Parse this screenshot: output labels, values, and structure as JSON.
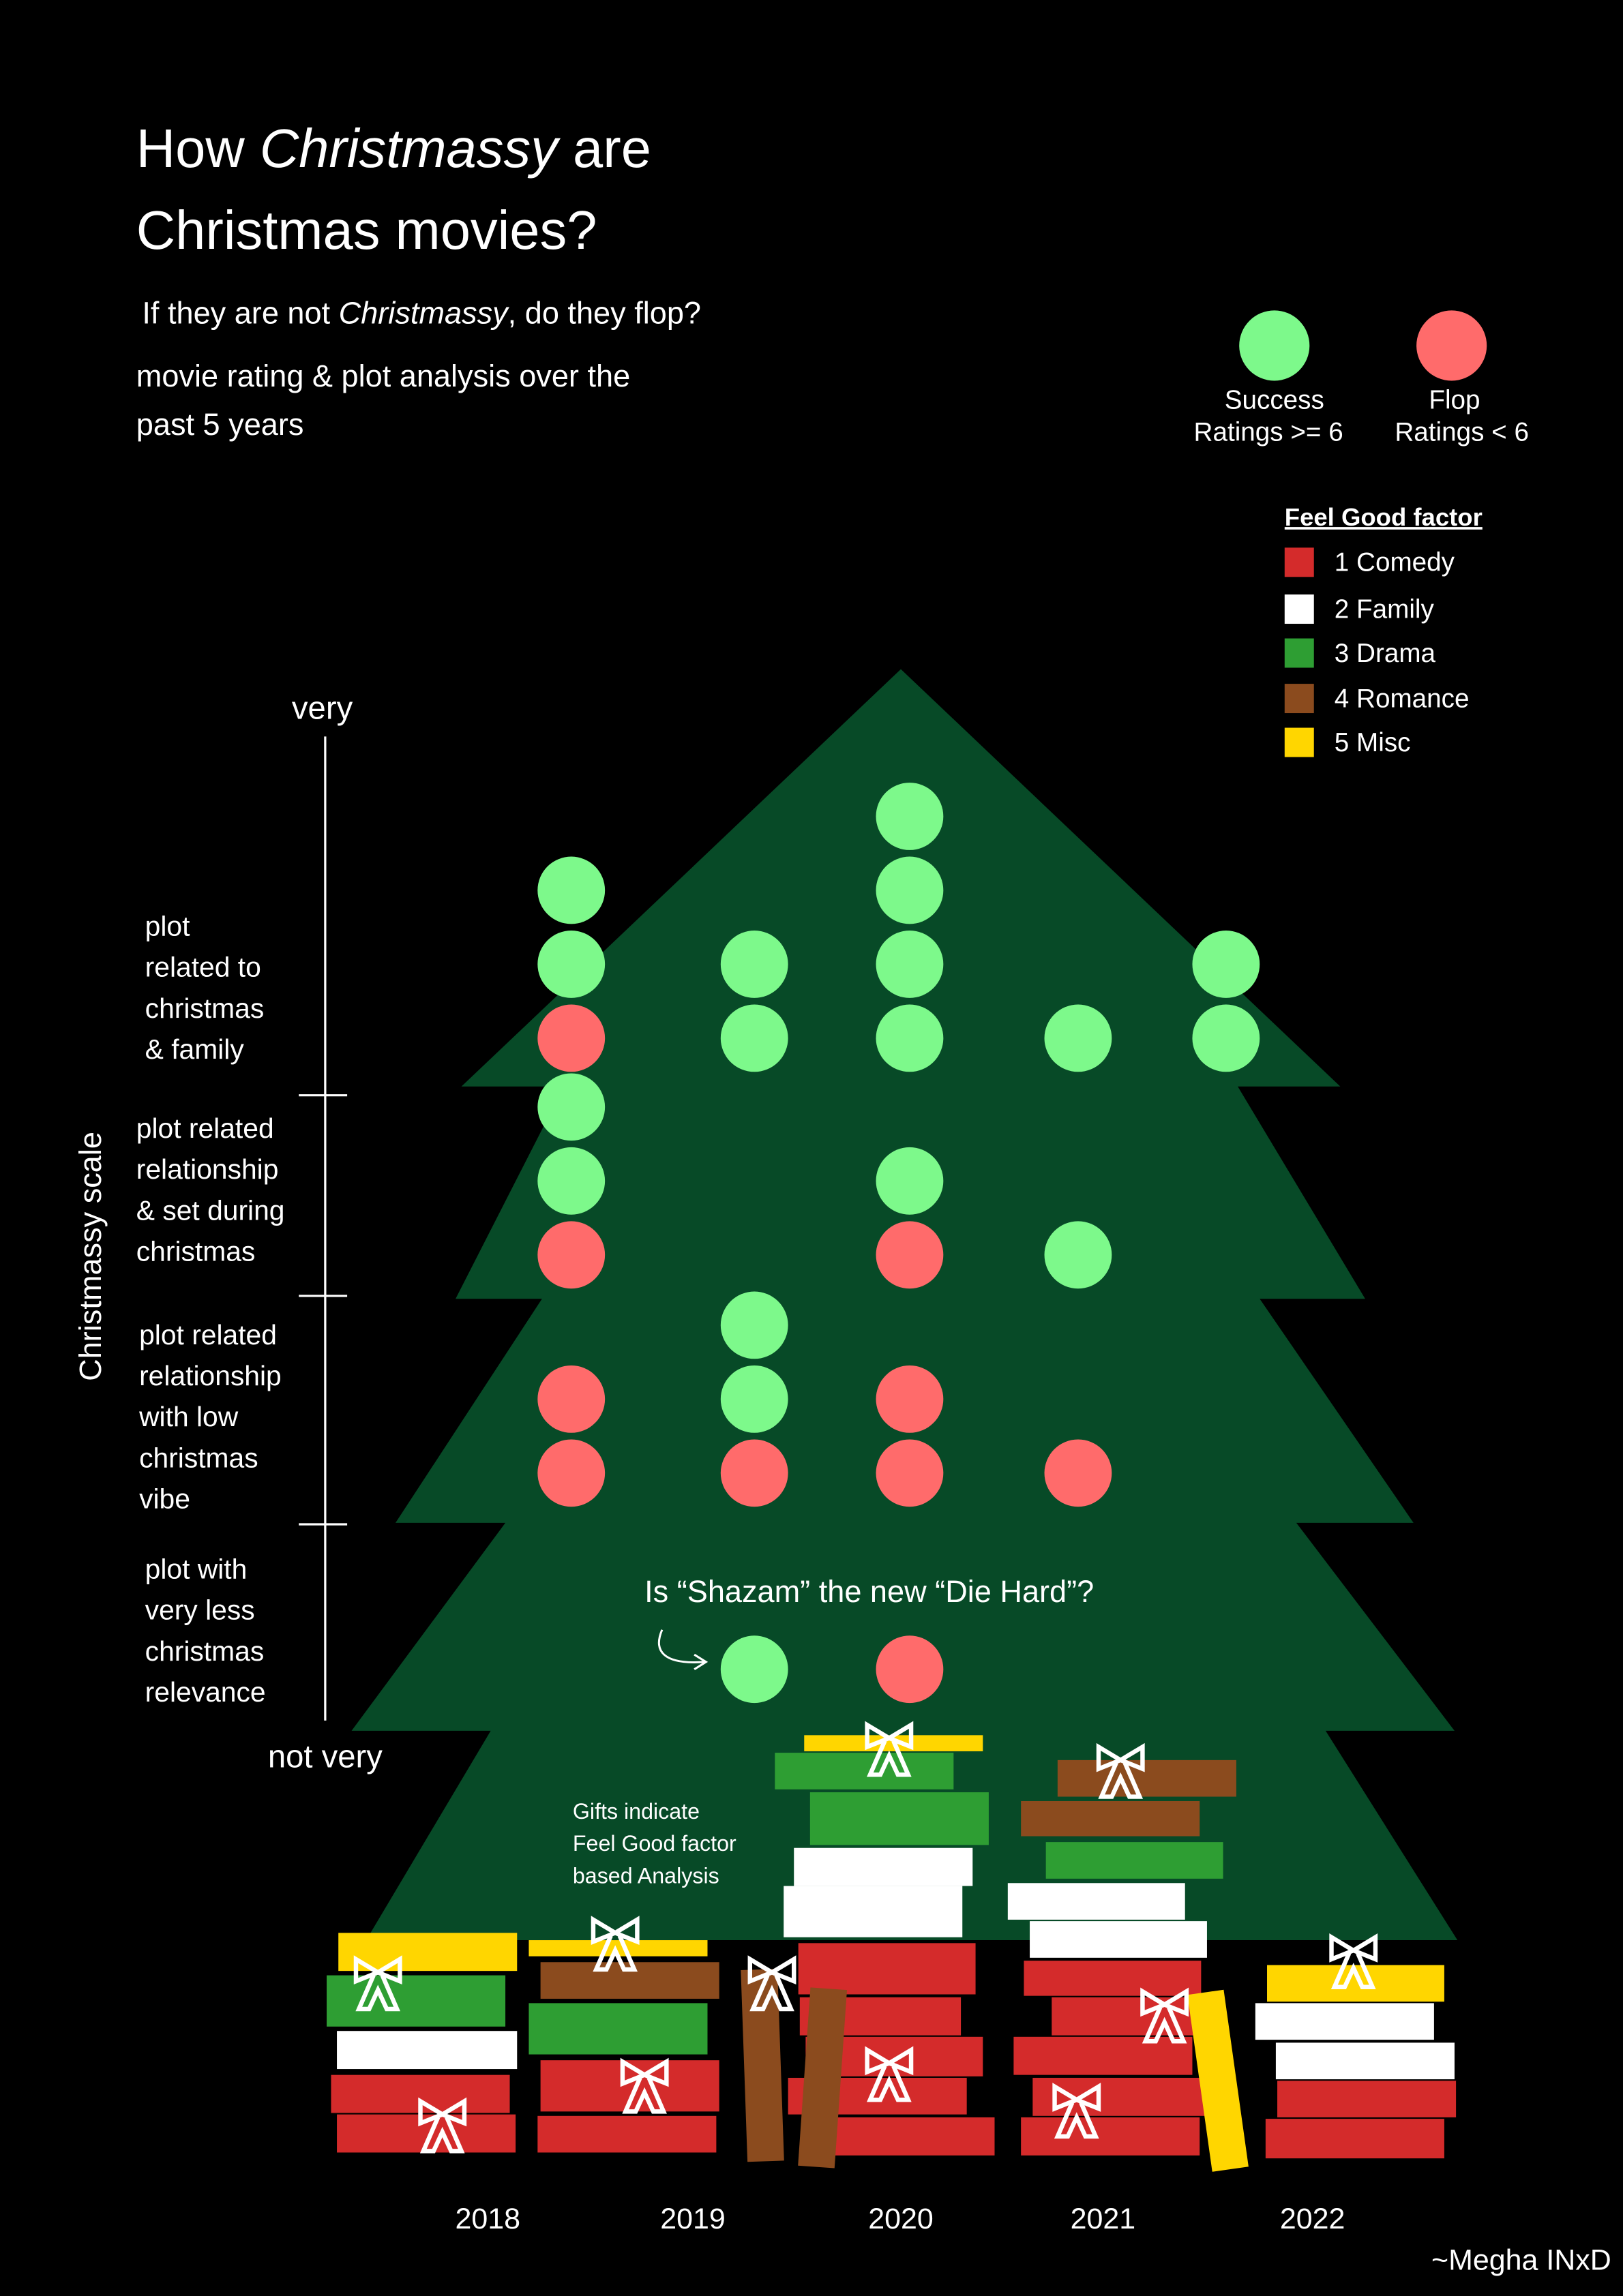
{
  "title": {
    "line1_pre": "How ",
    "line1_em": "Christmassy",
    "line1_post": " are",
    "line2": "Christmas movies?"
  },
  "subtitle": {
    "pre": "If they are not ",
    "em": "Christmassy",
    "post": ", do they flop?"
  },
  "description": {
    "line1": "movie rating & plot analysis over the",
    "line2": "past 5 years"
  },
  "legend_outcome": {
    "success": {
      "rule": "Ratings >= 6",
      "color": "#7DF98B"
    },
    "flop": {
      "rule": "Ratings < 6",
      "color": "#FF6B6B"
    }
  },
  "legend_feel_good": {
    "title": "Feel Good factor",
    "items": [
      {
        "num": "1",
        "label": "Comedy",
        "color": "#D42B2B"
      },
      {
        "num": "2",
        "label": "Family",
        "color": "#FFFFFF"
      },
      {
        "num": "3",
        "label": "Drama",
        "color": "#2E9E33"
      },
      {
        "num": "4",
        "label": "Romance",
        "color": "#8B4B1E"
      },
      {
        "num": "5",
        "label": "Misc",
        "color": "#FFD600"
      }
    ]
  },
  "axis": {
    "top": "very",
    "bottom": "not very"
  },
  "annotation": "Is “Shazam” the new “Die Hard”?",
  "gift_note": {
    "line1": "Gifts indicate",
    "line2": "Feel Good factor",
    "line3": "based Analysis"
  },
  "credit": "~Megha INxD",
  "colors": {
    "background": "#000000",
    "tree": "#074A27",
    "text": "#FFFFFF"
  },
  "icons": {
    "gift_bow": "bow-icon",
    "annotation_arrow": "curved-arrow-icon"
  },
  "chart_data": {
    "type": "scatter",
    "x": [
      "2018",
      "2019",
      "2020",
      "2021",
      "2022"
    ],
    "ylabel": "Christmassy scale",
    "y_categories": [
      [
        "plot",
        "related to",
        "christmas",
        "& family"
      ],
      [
        "plot related",
        "relationship",
        "& set during",
        "christmas"
      ],
      [
        "plot related",
        "relationship",
        "with low",
        "christmas",
        "vibe"
      ],
      [
        "plot with",
        "very less",
        "christmas",
        "relevance"
      ]
    ],
    "series": [
      {
        "name": "Success",
        "counts": [
          [
            2,
            2,
            4,
            1,
            2
          ],
          [
            2,
            0,
            1,
            1,
            0
          ],
          [
            0,
            2,
            0,
            0,
            0
          ],
          [
            0,
            1,
            0,
            0,
            0
          ]
        ]
      },
      {
        "name": "Flop",
        "counts": [
          [
            1,
            0,
            0,
            0,
            0
          ],
          [
            1,
            0,
            1,
            0,
            0
          ],
          [
            2,
            1,
            2,
            1,
            0
          ],
          [
            0,
            0,
            1,
            0,
            0
          ]
        ]
      }
    ],
    "gifts_feel_good_factor": {
      "2018": [
        5,
        3,
        2,
        1,
        1
      ],
      "2019": [
        5,
        4,
        3,
        1,
        1,
        4
      ],
      "2020": [
        5,
        3,
        3,
        2,
        2,
        1,
        1,
        1,
        1,
        1,
        4
      ],
      "2021": [
        4,
        4,
        3,
        2,
        2,
        1,
        1,
        1,
        1,
        1,
        5
      ],
      "2022": [
        5,
        2,
        2,
        1,
        1
      ]
    }
  }
}
